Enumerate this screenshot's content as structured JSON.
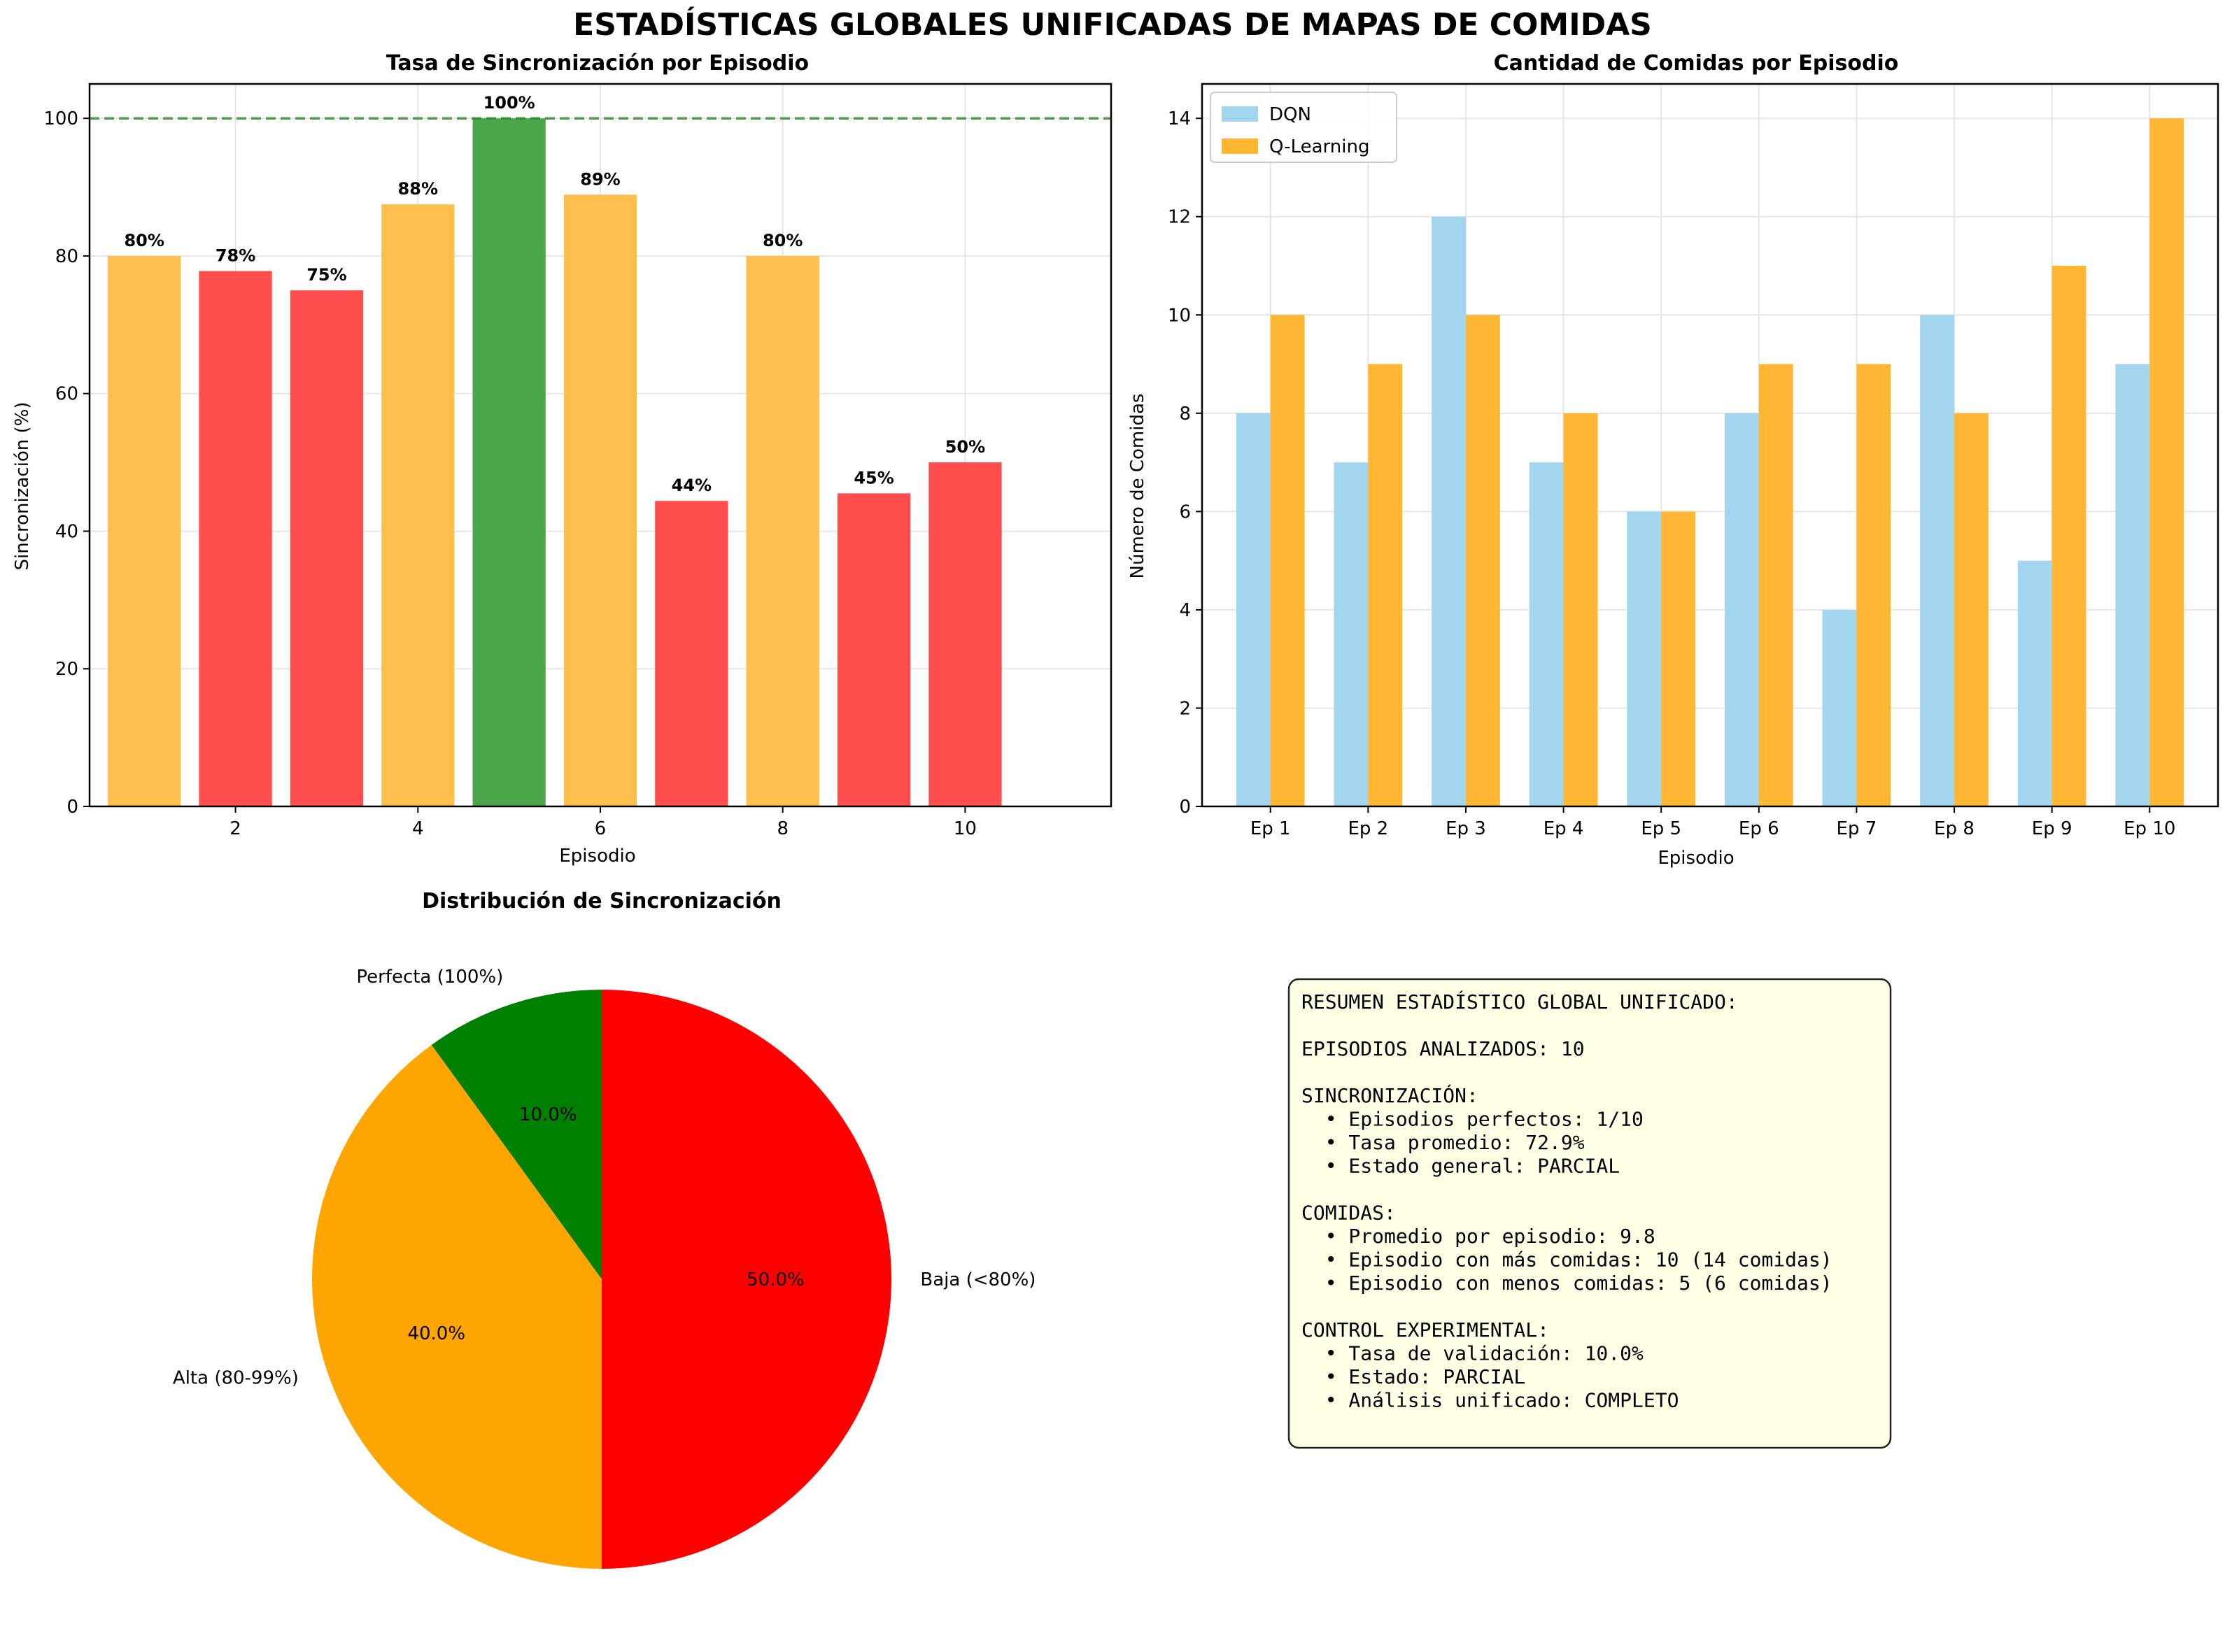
{
  "figure": {
    "title": "ESTADÍSTICAS GLOBALES UNIFICADAS DE MAPAS DE COMIDAS"
  },
  "colors": {
    "perfect": "#4ca64c",
    "high": "#ffbf4d",
    "low": "#ff4d4d",
    "dqn": "#a1d6ee",
    "qlearning": "#ffb733",
    "pie_perfect": "#008000",
    "pie_high": "#ffa500",
    "pie_low": "#ff0000",
    "reference_line": "#228b22",
    "summary_bg": "#ffffe6"
  },
  "chart_data": [
    {
      "type": "bar",
      "title": "Tasa de Sincronización por Episodio",
      "xlabel": "Episodio",
      "ylabel": "Sincronización (%)",
      "x": [
        1,
        2,
        3,
        4,
        5,
        6,
        7,
        8,
        9,
        10
      ],
      "values": [
        80,
        77.8,
        75,
        87.5,
        100,
        88.9,
        44.4,
        80,
        45.5,
        50
      ],
      "data_labels": [
        "80%",
        "78%",
        "75%",
        "88%",
        "100%",
        "89%",
        "44%",
        "80%",
        "45%",
        "50%"
      ],
      "categories_color": [
        "high",
        "low",
        "low",
        "high",
        "perfect",
        "high",
        "low",
        "high",
        "low",
        "low"
      ],
      "xlim": [
        0.4,
        11.6
      ],
      "ylim": [
        0,
        105
      ],
      "xticks": [
        2,
        4,
        6,
        8,
        10
      ],
      "yticks": [
        0,
        20,
        40,
        60,
        80,
        100
      ],
      "reference_line": 100,
      "grid": true
    },
    {
      "type": "bar",
      "title": "Cantidad de Comidas por Episodio",
      "xlabel": "Episodio",
      "ylabel": "Número de Comidas",
      "categories": [
        "Ep 1",
        "Ep 2",
        "Ep 3",
        "Ep 4",
        "Ep 5",
        "Ep 6",
        "Ep 7",
        "Ep 8",
        "Ep 9",
        "Ep 10"
      ],
      "series": [
        {
          "name": "DQN",
          "values": [
            8,
            7,
            12,
            7,
            6,
            8,
            4,
            10,
            5,
            9
          ]
        },
        {
          "name": "Q-Learning",
          "values": [
            10,
            9,
            10,
            8,
            6,
            9,
            9,
            8,
            11,
            14
          ]
        }
      ],
      "ylim": [
        0,
        14.7
      ],
      "yticks": [
        0,
        2,
        4,
        6,
        8,
        10,
        12,
        14
      ],
      "legend": "top-left",
      "grid": true
    },
    {
      "type": "pie",
      "title": "Distribución de Sincronización",
      "slices": [
        {
          "label": "Perfecta (100%)",
          "value": 10.0,
          "pct_label": "10.0%",
          "color_key": "pie_perfect"
        },
        {
          "label": "Alta (80-99%)",
          "value": 40.0,
          "pct_label": "40.0%",
          "color_key": "pie_high"
        },
        {
          "label": "Baja (<80%)",
          "value": 50.0,
          "pct_label": "50.0%",
          "color_key": "pie_low"
        }
      ]
    }
  ],
  "summary": {
    "lines": [
      "RESUMEN ESTADÍSTICO GLOBAL UNIFICADO:",
      "",
      "EPISODIOS ANALIZADOS: 10",
      "",
      "SINCRONIZACIÓN:",
      "  • Episodios perfectos: 1/10",
      "  • Tasa promedio: 72.9%",
      "  • Estado general: PARCIAL",
      "",
      "COMIDAS:",
      "  • Promedio por episodio: 9.8",
      "  • Episodio con más comidas: 10 (14 comidas)",
      "  • Episodio con menos comidas: 5 (6 comidas)",
      "",
      "CONTROL EXPERIMENTAL:",
      "  • Tasa de validación: 10.0%",
      "  • Estado: PARCIAL",
      "  • Análisis unificado: COMPLETO"
    ]
  }
}
